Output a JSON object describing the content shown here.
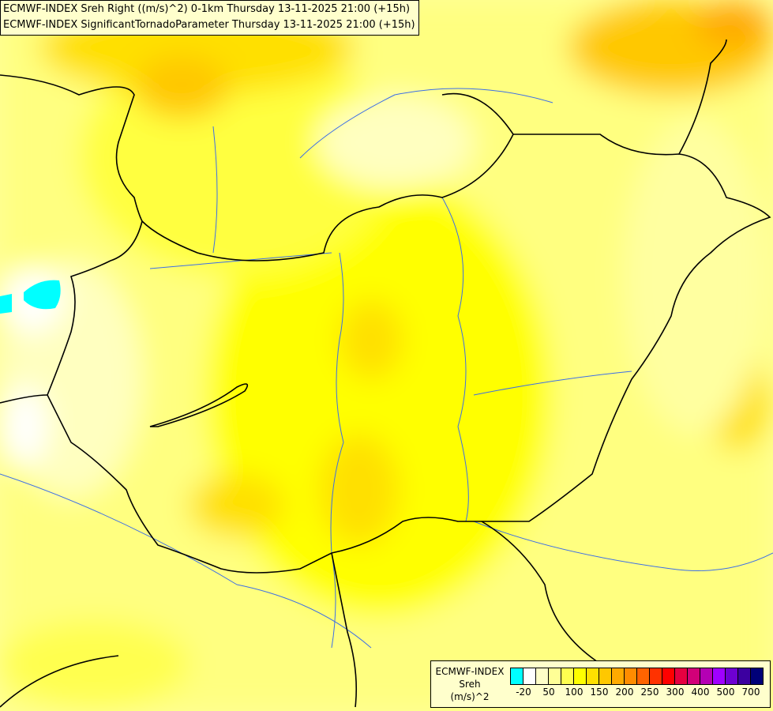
{
  "title": {
    "line1": "ECMWF-INDEX Sreh Right ((m/s)^2) 0-1km Thursday 13-11-2025 21:00 (+15h)",
    "line2": "ECMWF-INDEX SignificantTornadoParameter Thursday 13-11-2025 21:00 (+15h)"
  },
  "legend": {
    "name": "ECMWF-INDEX",
    "variable": "Sreh",
    "unit": "(m/s)^2",
    "colors": [
      "#00ffff",
      "#ffffff",
      "#ffffc8",
      "#ffff96",
      "#ffff50",
      "#ffff00",
      "#ffe000",
      "#ffc800",
      "#ffaa00",
      "#ff8c00",
      "#ff6400",
      "#ff3200",
      "#ff0000",
      "#e60040",
      "#d20078",
      "#b400b4",
      "#a000ff",
      "#6e00d2",
      "#3c00a0",
      "#000078"
    ],
    "ticks": [
      "-20",
      "50",
      "100",
      "150",
      "200",
      "250",
      "300",
      "400",
      "500",
      "700"
    ]
  },
  "map": {
    "border_color": "#000000",
    "river_color": "#3c6ee6"
  }
}
